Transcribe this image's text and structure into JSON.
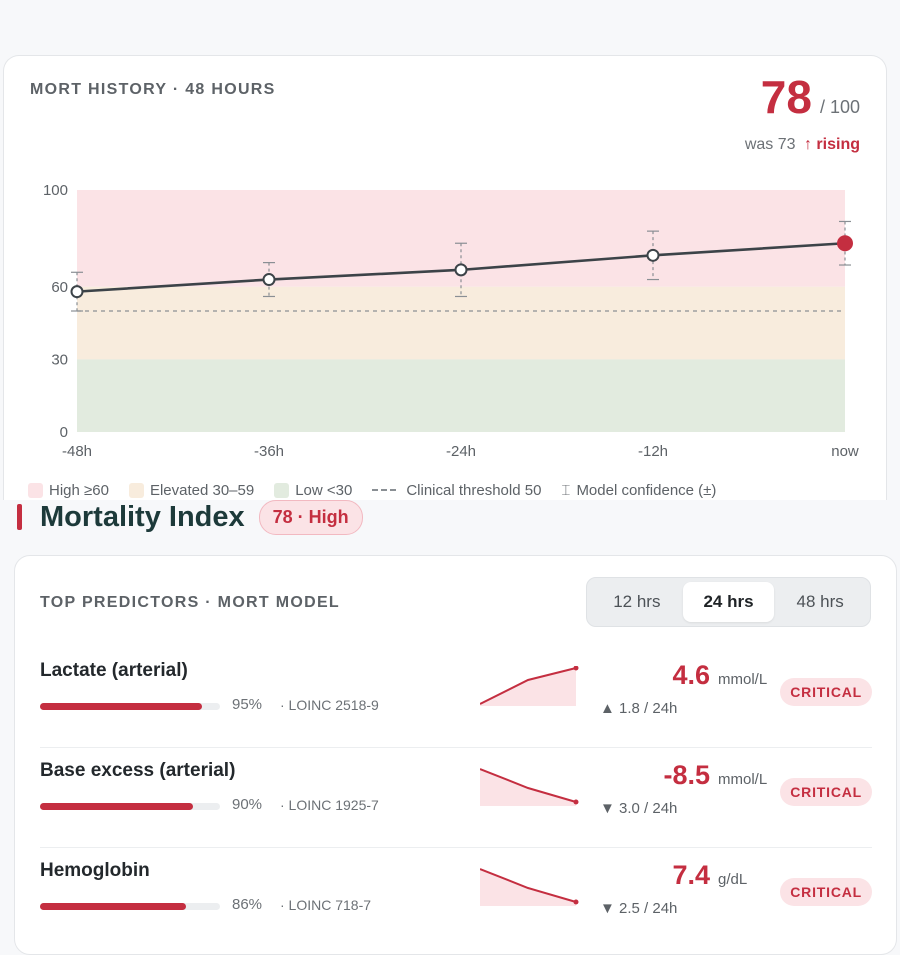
{
  "history": {
    "title": "MORT HISTORY · 48 HOURS",
    "score": "78",
    "score_max": "/ 100",
    "was": "was 73",
    "rising": "↑ rising"
  },
  "chart_data": {
    "type": "line",
    "x": [
      "-48h",
      "-36h",
      "-24h",
      "-12h",
      "now"
    ],
    "series": [
      {
        "values": [
          58,
          63,
          67,
          73,
          78
        ],
        "error": [
          8,
          7,
          11,
          10,
          9
        ]
      }
    ],
    "y_ticks": [
      0,
      30,
      60,
      100
    ],
    "ylim": [
      0,
      100
    ],
    "threshold": 50,
    "bands": [
      {
        "label": "High ≥60",
        "from": 60,
        "to": 100,
        "color": "#fbe3e6"
      },
      {
        "label": "Elevated 30–59",
        "from": 30,
        "to": 60,
        "color": "#f8ecdd"
      },
      {
        "label": "Low <30",
        "from": 0,
        "to": 30,
        "color": "#e2ebdf"
      }
    ],
    "legend": [
      "High ≥60",
      "Elevated 30–59",
      "Low <30",
      "Clinical threshold 50",
      "Model confidence (±)"
    ]
  },
  "index": {
    "title": "Mortality Index",
    "badge": "78 · High"
  },
  "predictors": {
    "title": "TOP PREDICTORS · MORT MODEL",
    "tabs": [
      "12 hrs",
      "24 hrs",
      "48 hrs"
    ],
    "active_tab": "24 hrs",
    "rows": [
      {
        "name": "Lactate (arterial)",
        "pct": "95%",
        "pct_value": 95,
        "loinc": "· LOINC 2518-9",
        "value": "4.6",
        "unit": "mmol/L",
        "trend": "▲ 1.8 / 24h",
        "badge": "CRITICAL",
        "spark": "up"
      },
      {
        "name": "Base excess (arterial)",
        "pct": "90%",
        "pct_value": 90,
        "loinc": "· LOINC 1925-7",
        "value": "-8.5",
        "unit": "mmol/L",
        "trend": "▼ 3.0 / 24h",
        "badge": "CRITICAL",
        "spark": "down"
      },
      {
        "name": "Hemoglobin",
        "pct": "86%",
        "pct_value": 86,
        "loinc": "· LOINC 718-7",
        "value": "7.4",
        "unit": "g/dL",
        "trend": "▼ 2.5 / 24h",
        "badge": "CRITICAL",
        "spark": "down"
      }
    ]
  },
  "colors": {
    "accent": "#c42e40",
    "line": "#3c4348"
  }
}
